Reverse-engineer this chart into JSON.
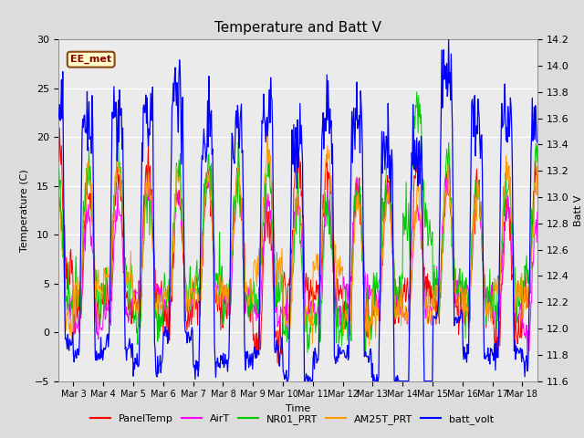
{
  "title": "Temperature and Batt V",
  "xlabel": "Time",
  "ylabel_left": "Temperature (C)",
  "ylabel_right": "Batt V",
  "ylim_left": [
    -5,
    30
  ],
  "ylim_right": [
    11.6,
    14.2
  ],
  "legend_label": "EE_met",
  "series_names": [
    "PanelTemp",
    "AirT",
    "NR01_PRT",
    "AM25T_PRT",
    "batt_volt"
  ],
  "series_colors": [
    "#ff0000",
    "#ff00ff",
    "#00cc00",
    "#ff9900",
    "#0000ff"
  ],
  "bg_color": "#dcdcdc",
  "plot_bg_color": "#ebebeb",
  "grid_color": "#ffffff",
  "title_fontsize": 11,
  "axis_fontsize": 8,
  "tick_fontsize": 8,
  "x_tick_labels": [
    "Mar 3",
    "Mar 4",
    "Mar 5",
    "Mar 6",
    "Mar 7",
    "Mar 8",
    "Mar 9",
    "Mar 10",
    "Mar 11",
    "Mar 12",
    "Mar 13",
    "Mar 14",
    "Mar 15",
    "Mar 16",
    "Mar 17",
    "Mar 18"
  ],
  "x_tick_positions": [
    3,
    4,
    5,
    6,
    7,
    8,
    9,
    10,
    11,
    12,
    13,
    14,
    15,
    16,
    17,
    18
  ],
  "xlim": [
    2.5,
    18.5
  ],
  "yticks_left": [
    -5,
    0,
    5,
    10,
    15,
    20,
    25,
    30
  ],
  "yticks_right": [
    11.6,
    11.8,
    12.0,
    12.2,
    12.4,
    12.6,
    12.8,
    13.0,
    13.2,
    13.4,
    13.6,
    13.8,
    14.0,
    14.2
  ]
}
